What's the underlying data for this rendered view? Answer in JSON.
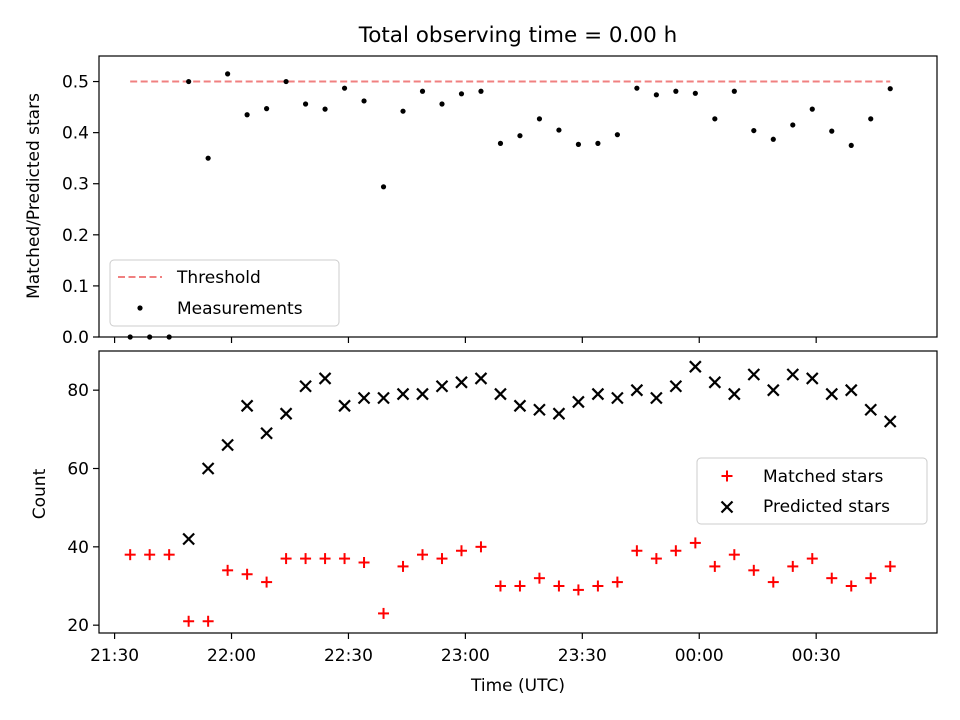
{
  "chart_data": [
    {
      "type": "scatter",
      "title": "Total observing time = 0.00 h",
      "xlabel": "",
      "ylabel": "Matched/Predicted stars",
      "ylim": [
        0,
        0.55
      ],
      "yticks": [
        "0.0",
        "0.1",
        "0.2",
        "0.3",
        "0.4",
        "0.5"
      ],
      "ytick_values": [
        0,
        0.1,
        0.2,
        0.3,
        0.4,
        0.5
      ],
      "legend_position": "lower-left",
      "threshold": {
        "name": "Threshold",
        "value": 0.5,
        "x_start": "21:34",
        "x_end": "00:49",
        "color": "#f08080"
      },
      "series": [
        {
          "name": "Measurements",
          "color": "#000000",
          "x": [
            "21:34",
            "21:39",
            "21:44",
            "21:49",
            "21:54",
            "21:59",
            "22:04",
            "22:09",
            "22:14",
            "22:19",
            "22:24",
            "22:29",
            "22:34",
            "22:39",
            "22:44",
            "22:49",
            "22:54",
            "22:59",
            "23:04",
            "23:09",
            "23:14",
            "23:19",
            "23:24",
            "23:29",
            "23:34",
            "23:39",
            "23:44",
            "23:49",
            "23:54",
            "23:59",
            "00:04",
            "00:09",
            "00:14",
            "00:19",
            "00:24",
            "00:29",
            "00:34",
            "00:39",
            "00:44",
            "00:49"
          ],
          "y": [
            0.0,
            0.0,
            0.0,
            0.5,
            0.35,
            0.515,
            0.435,
            0.447,
            0.5,
            0.456,
            0.446,
            0.487,
            0.462,
            0.294,
            0.442,
            0.481,
            0.456,
            0.476,
            0.481,
            0.379,
            0.394,
            0.427,
            0.405,
            0.377,
            0.379,
            0.396,
            0.487,
            0.474,
            0.481,
            0.477,
            0.427,
            0.481,
            0.404,
            0.387,
            0.415,
            0.446,
            0.403,
            0.375,
            0.427,
            0.486
          ]
        }
      ]
    },
    {
      "type": "scatter",
      "title": "",
      "xlabel": "Time (UTC)",
      "ylabel": "Count",
      "ylim": [
        18,
        90
      ],
      "yticks": [
        "20",
        "40",
        "60",
        "80"
      ],
      "ytick_values": [
        20,
        40,
        60,
        80
      ],
      "xlim": [
        "21:26",
        "01:01"
      ],
      "xticks": [
        "21:30",
        "22:00",
        "22:30",
        "23:00",
        "23:30",
        "00:00",
        "00:30"
      ],
      "legend_position": "center-right",
      "series": [
        {
          "name": "Matched stars",
          "marker": "plus",
          "color": "#ff0000",
          "x": [
            "21:34",
            "21:39",
            "21:44",
            "21:49",
            "21:54",
            "21:59",
            "22:04",
            "22:09",
            "22:14",
            "22:19",
            "22:24",
            "22:29",
            "22:34",
            "22:39",
            "22:44",
            "22:49",
            "22:54",
            "22:59",
            "23:04",
            "23:09",
            "23:14",
            "23:19",
            "23:24",
            "23:29",
            "23:34",
            "23:39",
            "23:44",
            "23:49",
            "23:54",
            "23:59",
            "00:04",
            "00:09",
            "00:14",
            "00:19",
            "00:24",
            "00:29",
            "00:34",
            "00:39",
            "00:44",
            "00:49"
          ],
          "y": [
            38,
            38,
            38,
            21,
            21,
            34,
            33,
            31,
            37,
            37,
            37,
            37,
            36,
            23,
            35,
            38,
            37,
            39,
            40,
            30,
            30,
            32,
            30,
            29,
            30,
            31,
            39,
            37,
            39,
            41,
            35,
            38,
            34,
            31,
            35,
            37,
            32,
            30,
            32,
            35
          ]
        },
        {
          "name": "Predicted stars",
          "marker": "x",
          "color": "#000000",
          "x": [
            "21:49",
            "21:54",
            "21:59",
            "22:04",
            "22:09",
            "22:14",
            "22:19",
            "22:24",
            "22:29",
            "22:34",
            "22:39",
            "22:44",
            "22:49",
            "22:54",
            "22:59",
            "23:04",
            "23:09",
            "23:14",
            "23:19",
            "23:24",
            "23:29",
            "23:34",
            "23:39",
            "23:44",
            "23:49",
            "23:54",
            "23:59",
            "00:04",
            "00:09",
            "00:14",
            "00:19",
            "00:24",
            "00:29",
            "00:34",
            "00:39",
            "00:44",
            "00:49"
          ],
          "y": [
            42,
            60,
            66,
            76,
            69,
            74,
            81,
            83,
            76,
            78,
            78,
            79,
            79,
            81,
            82,
            83,
            79,
            76,
            75,
            74,
            77,
            79,
            78,
            80,
            78,
            81,
            86,
            82,
            79,
            84,
            80,
            84,
            83,
            79,
            80,
            75,
            72
          ]
        }
      ]
    }
  ]
}
